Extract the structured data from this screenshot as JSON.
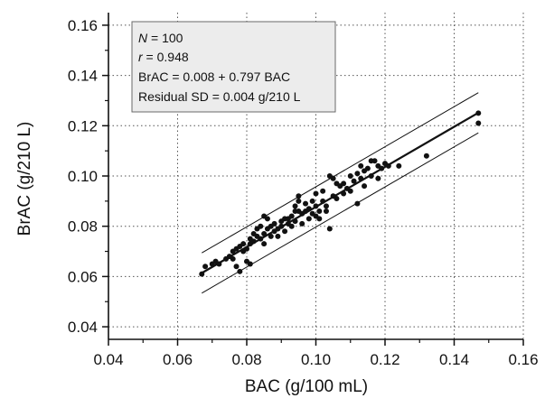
{
  "chart_data": {
    "type": "scatter",
    "xlabel": "BAC (g/100 mL)",
    "ylabel": "BrAC (g/210 L)",
    "xlim": [
      0.04,
      0.16
    ],
    "ylim": [
      0.035,
      0.165
    ],
    "x_ticks": [
      "0.04",
      "0.06",
      "0.08",
      "0.10",
      "0.12",
      "0.14",
      "0.16"
    ],
    "y_ticks": [
      "0.04",
      "0.06",
      "0.08",
      "0.10",
      "0.12",
      "0.14",
      "0.16"
    ],
    "grid": "dotted",
    "stats_box": {
      "n_label": "N",
      "n_value": " = 100",
      "r_label": "r",
      "r_value": " = 0.948",
      "equation": "BrAC = 0.008 + 0.797 BAC",
      "residual": "Residual SD = 0.004 g/210 L"
    },
    "regression": {
      "intercept": 0.008,
      "slope": 0.797,
      "x_range": [
        0.067,
        0.147
      ],
      "band_offset": 0.008
    },
    "points": [
      [
        0.067,
        0.061
      ],
      [
        0.068,
        0.064
      ],
      [
        0.07,
        0.065
      ],
      [
        0.071,
        0.066
      ],
      [
        0.072,
        0.065
      ],
      [
        0.074,
        0.067
      ],
      [
        0.075,
        0.068
      ],
      [
        0.076,
        0.07
      ],
      [
        0.076,
        0.067
      ],
      [
        0.077,
        0.071
      ],
      [
        0.077,
        0.064
      ],
      [
        0.078,
        0.072
      ],
      [
        0.078,
        0.062
      ],
      [
        0.079,
        0.073
      ],
      [
        0.079,
        0.07
      ],
      [
        0.08,
        0.071
      ],
      [
        0.08,
        0.066
      ],
      [
        0.081,
        0.075
      ],
      [
        0.081,
        0.073
      ],
      [
        0.081,
        0.065
      ],
      [
        0.082,
        0.077
      ],
      [
        0.082,
        0.074
      ],
      [
        0.083,
        0.079
      ],
      [
        0.083,
        0.076
      ],
      [
        0.084,
        0.08
      ],
      [
        0.084,
        0.075
      ],
      [
        0.085,
        0.084
      ],
      [
        0.085,
        0.077
      ],
      [
        0.085,
        0.073
      ],
      [
        0.086,
        0.083
      ],
      [
        0.086,
        0.079
      ],
      [
        0.087,
        0.08
      ],
      [
        0.087,
        0.076
      ],
      [
        0.088,
        0.081
      ],
      [
        0.088,
        0.078
      ],
      [
        0.089,
        0.079
      ],
      [
        0.089,
        0.076
      ],
      [
        0.09,
        0.082
      ],
      [
        0.09,
        0.08
      ],
      [
        0.091,
        0.083
      ],
      [
        0.091,
        0.078
      ],
      [
        0.092,
        0.081
      ],
      [
        0.092,
        0.083
      ],
      [
        0.093,
        0.084
      ],
      [
        0.093,
        0.08
      ],
      [
        0.094,
        0.088
      ],
      [
        0.094,
        0.086
      ],
      [
        0.094,
        0.082
      ],
      [
        0.095,
        0.092
      ],
      [
        0.095,
        0.09
      ],
      [
        0.095,
        0.086
      ],
      [
        0.096,
        0.085
      ],
      [
        0.096,
        0.081
      ],
      [
        0.097,
        0.089
      ],
      [
        0.097,
        0.086
      ],
      [
        0.098,
        0.087
      ],
      [
        0.098,
        0.083
      ],
      [
        0.099,
        0.09
      ],
      [
        0.099,
        0.085
      ],
      [
        0.1,
        0.093
      ],
      [
        0.1,
        0.088
      ],
      [
        0.1,
        0.084
      ],
      [
        0.101,
        0.086
      ],
      [
        0.101,
        0.083
      ],
      [
        0.102,
        0.094
      ],
      [
        0.102,
        0.09
      ],
      [
        0.103,
        0.088
      ],
      [
        0.103,
        0.086
      ],
      [
        0.104,
        0.1
      ],
      [
        0.104,
        0.079
      ],
      [
        0.105,
        0.099
      ],
      [
        0.105,
        0.092
      ],
      [
        0.106,
        0.097
      ],
      [
        0.106,
        0.091
      ],
      [
        0.107,
        0.096
      ],
      [
        0.108,
        0.097
      ],
      [
        0.108,
        0.093
      ],
      [
        0.109,
        0.095
      ],
      [
        0.11,
        0.1
      ],
      [
        0.11,
        0.094
      ],
      [
        0.111,
        0.098
      ],
      [
        0.112,
        0.101
      ],
      [
        0.112,
        0.089
      ],
      [
        0.113,
        0.104
      ],
      [
        0.113,
        0.099
      ],
      [
        0.114,
        0.102
      ],
      [
        0.114,
        0.096
      ],
      [
        0.115,
        0.103
      ],
      [
        0.116,
        0.1
      ],
      [
        0.116,
        0.106
      ],
      [
        0.117,
        0.106
      ],
      [
        0.118,
        0.104
      ],
      [
        0.118,
        0.099
      ],
      [
        0.119,
        0.103
      ],
      [
        0.12,
        0.105
      ],
      [
        0.121,
        0.104
      ],
      [
        0.124,
        0.104
      ],
      [
        0.132,
        0.108
      ],
      [
        0.147,
        0.125
      ],
      [
        0.147,
        0.121
      ]
    ]
  }
}
